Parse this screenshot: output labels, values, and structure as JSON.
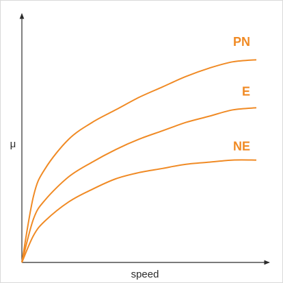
{
  "colors": {
    "curve": "#f08a24",
    "axis": "#2b2b2b",
    "frame": "#d9d9d9",
    "background": "#ffffff"
  },
  "chart_data": {
    "type": "line",
    "title": "",
    "xlabel": "speed",
    "ylabel": "μ",
    "xlim": [
      0,
      1
    ],
    "ylim": [
      0,
      1
    ],
    "grid": false,
    "legend": "inline-right",
    "series": [
      {
        "name": "PN",
        "x": [
          0,
          0.05,
          0.1,
          0.2,
          0.3,
          0.4,
          0.5,
          0.6,
          0.7,
          0.8,
          0.9,
          1.0
        ],
        "y": [
          0,
          0.32,
          0.45,
          0.59,
          0.67,
          0.73,
          0.79,
          0.84,
          0.89,
          0.93,
          0.96,
          0.97
        ]
      },
      {
        "name": "E",
        "x": [
          0,
          0.05,
          0.1,
          0.2,
          0.3,
          0.4,
          0.5,
          0.6,
          0.7,
          0.8,
          0.9,
          1.0
        ],
        "y": [
          0,
          0.21,
          0.3,
          0.41,
          0.48,
          0.54,
          0.59,
          0.63,
          0.67,
          0.7,
          0.73,
          0.74
        ]
      },
      {
        "name": "NE",
        "x": [
          0,
          0.05,
          0.1,
          0.2,
          0.3,
          0.4,
          0.5,
          0.6,
          0.7,
          0.8,
          0.9,
          1.0
        ],
        "y": [
          0,
          0.13,
          0.2,
          0.29,
          0.35,
          0.4,
          0.43,
          0.45,
          0.47,
          0.48,
          0.49,
          0.49
        ]
      }
    ]
  }
}
